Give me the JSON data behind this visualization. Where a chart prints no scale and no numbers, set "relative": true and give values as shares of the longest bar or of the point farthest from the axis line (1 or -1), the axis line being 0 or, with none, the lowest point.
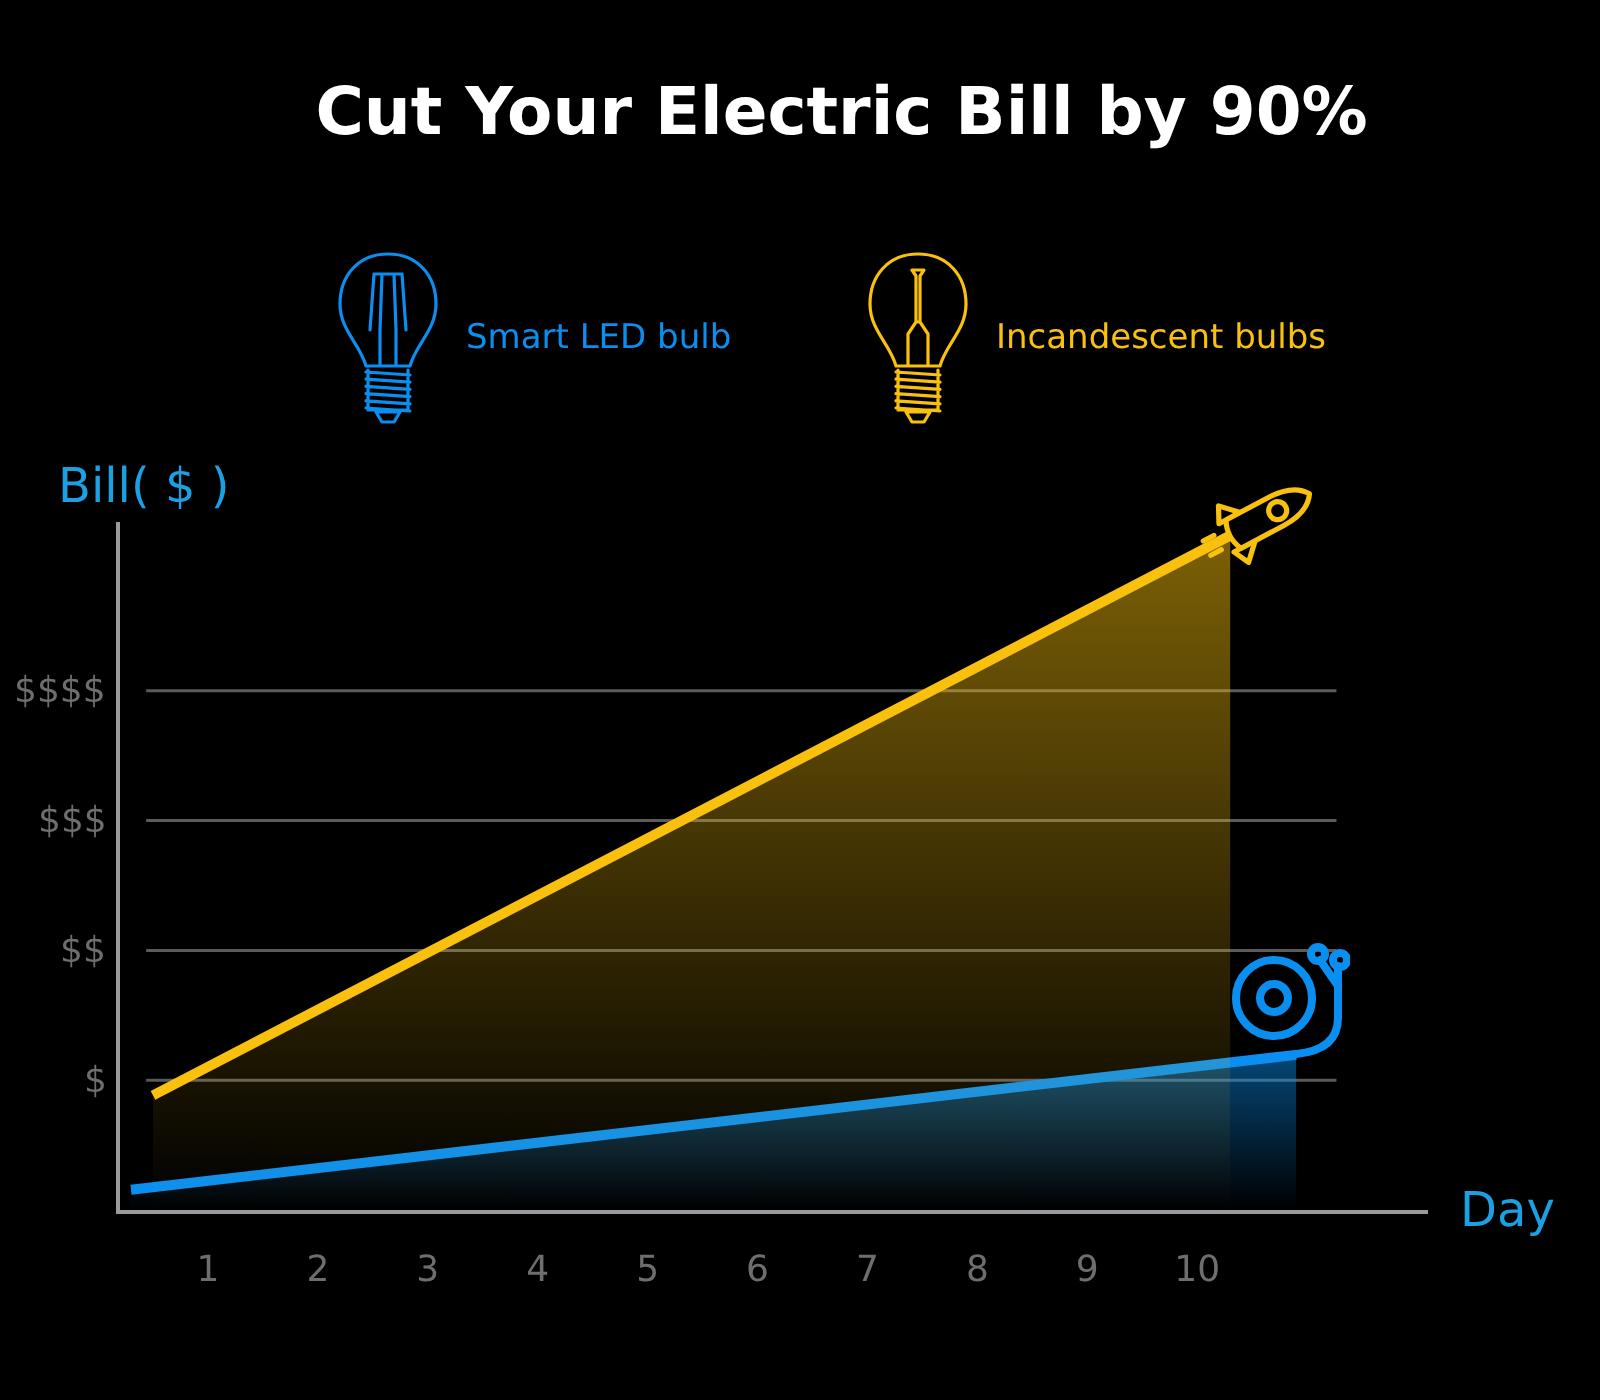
{
  "chart_data": {
    "type": "area",
    "title": "Cut Your Electric Bill by 90%",
    "xlabel": "Day",
    "ylabel": "Bill( $ )",
    "relative": true,
    "series": [
      {
        "name": "Smart LED bulb",
        "color": "#0a8ff0",
        "x": [
          0.3,
          10.9
        ],
        "values": [
          0.03,
          0.23
        ]
      },
      {
        "name": "Incandescent bulbs",
        "color": "#f9c10e",
        "x": [
          0.5,
          10.3
        ],
        "values": [
          0.17,
          1
        ]
      }
    ],
    "xlim": [
      0.2,
      12.1
    ],
    "xticks": [
      1,
      2,
      3,
      4,
      5,
      6,
      7,
      8,
      9,
      10
    ],
    "annotations": [
      "$",
      "$$",
      "$$$",
      "$$$$"
    ],
    "grid": "y",
    "legend": "top"
  }
}
